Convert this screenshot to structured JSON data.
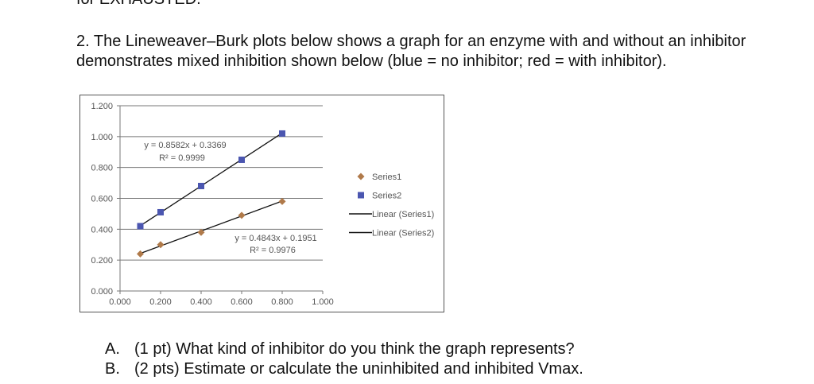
{
  "cut_heading": "for EXHAUSTED.",
  "question": {
    "line1": "2. The Lineweaver–Burk plots below shows a graph for an enzyme with and without an inhibitor",
    "line2": "demonstrates mixed inhibition shown below (blue = no inhibitor; red = with inhibitor)."
  },
  "chart_data": {
    "type": "scatter",
    "title": "",
    "xlabel": "",
    "ylabel": "",
    "xlim": [
      0,
      1.0
    ],
    "ylim": [
      0,
      1.2
    ],
    "x_ticks": [
      "0.000",
      "0.200",
      "0.400",
      "0.600",
      "0.800",
      "1.000"
    ],
    "y_ticks": [
      "0.000",
      "0.200",
      "0.400",
      "0.600",
      "0.800",
      "1.000",
      "1.200"
    ],
    "grid": "horizontal",
    "legend_position": "right",
    "series": [
      {
        "name": "Series1",
        "marker": "diamond",
        "color": "#b07a4a",
        "x": [
          0.1,
          0.2,
          0.4,
          0.6,
          0.8
        ],
        "y": [
          0.24,
          0.3,
          0.38,
          0.49,
          0.58
        ]
      },
      {
        "name": "Series2",
        "marker": "square",
        "color": "#4b56b0",
        "x": [
          0.1,
          0.2,
          0.4,
          0.6,
          0.8
        ],
        "y": [
          0.42,
          0.51,
          0.68,
          0.85,
          1.02
        ]
      }
    ],
    "trendlines": [
      {
        "name": "Linear (Series1)",
        "slope": 0.4843,
        "intercept": 0.1951,
        "x_range": [
          0.1,
          0.8
        ],
        "equation": "y = 0.4843x + 0.1951",
        "r2": "R² = 0.9976",
        "color": "#111111"
      },
      {
        "name": "Linear (Series2)",
        "slope": 0.8582,
        "intercept": 0.3369,
        "x_range": [
          0.1,
          0.8
        ],
        "equation": "y = 0.8582x + 0.3369",
        "r2": "R² = 0.9999",
        "color": "#111111"
      }
    ]
  },
  "answers": [
    {
      "label": "A.",
      "text": "(1 pt) What kind of inhibitor do you think the graph represents?"
    },
    {
      "label": "B.",
      "text": "(2 pts) Estimate or calculate the uninhibited and inhibited Vmax."
    }
  ]
}
